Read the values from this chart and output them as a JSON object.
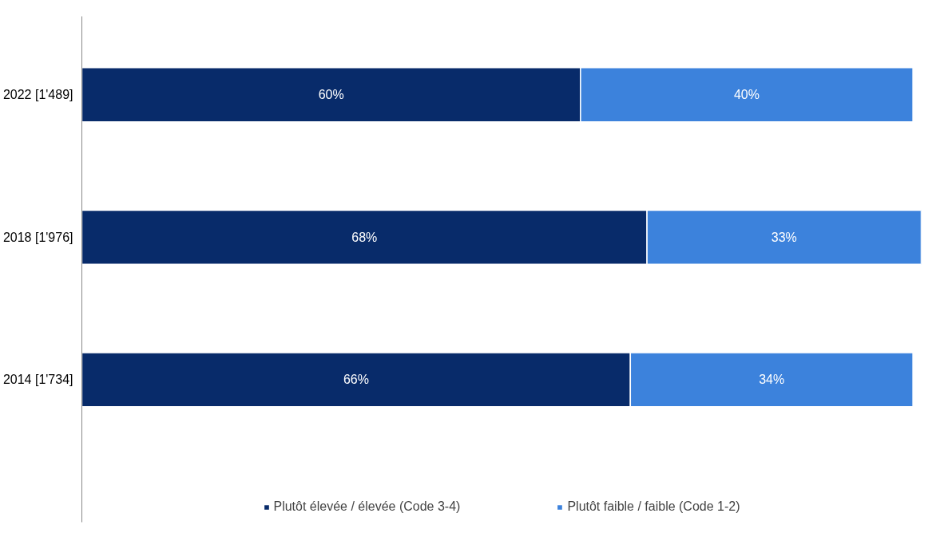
{
  "chart_data": {
    "type": "bar",
    "orientation": "horizontal",
    "stacked": true,
    "categories": [
      "2022 [1'489]",
      "2018 [1'976]",
      "2014 [1'734]"
    ],
    "series": [
      {
        "name": "Plutôt élevée / élevée (Code 3-4)",
        "color": "#082b6a",
        "values": [
          60,
          68,
          66
        ],
        "value_labels": [
          "60%",
          "68%",
          "66%"
        ]
      },
      {
        "name": "Plutôt faible / faible (Code 1-2)",
        "color": "#3c82dc",
        "values": [
          40,
          33,
          34
        ],
        "value_labels": [
          "40%",
          "33%",
          "34%"
        ]
      }
    ],
    "legend": "bottom",
    "grid": false
  }
}
